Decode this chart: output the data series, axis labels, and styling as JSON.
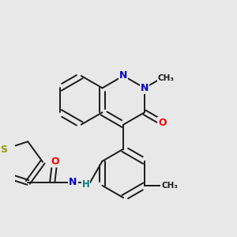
{
  "background_color": "#e8e8e8",
  "bond_color": "#1a1a1a",
  "atom_colors": {
    "O": "#ff0000",
    "N": "#0000cc",
    "S": "#999900",
    "C": "#1a1a1a",
    "H": "#008080"
  },
  "figsize": [
    3.0,
    3.0
  ],
  "dpi": 100
}
